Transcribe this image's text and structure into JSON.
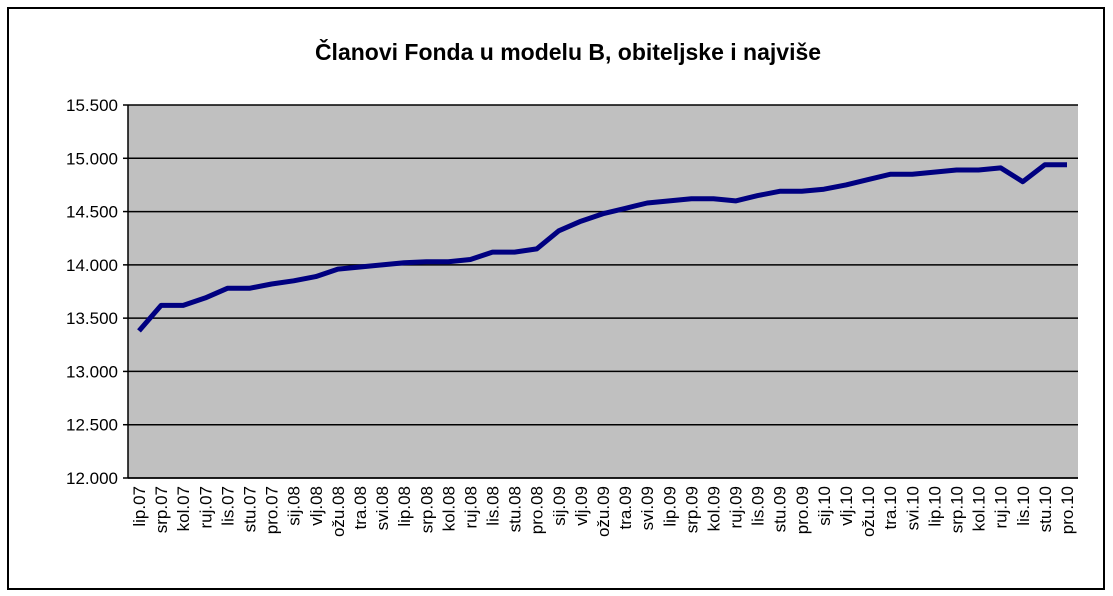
{
  "chart_data": {
    "type": "line",
    "title": "Članovi Fonda u modelu B, obiteljske i najviše",
    "categories": [
      "lip.07",
      "srp.07",
      "kol.07",
      "ruj.07",
      "lis.07",
      "stu.07",
      "pro.07",
      "sij.08",
      "vlj.08",
      "ožu.08",
      "tra.08",
      "svi.08",
      "lip.08",
      "srp.08",
      "kol.08",
      "ruj.08",
      "lis.08",
      "stu.08",
      "pro.08",
      "sij.09",
      "vlj.09",
      "ožu.09",
      "tra.09",
      "svi.09",
      "lip.09",
      "srp.09",
      "kol.09",
      "ruj.09",
      "lis.09",
      "stu.09",
      "pro.09",
      "sij.10",
      "vlj.10",
      "ožu.10",
      "tra.10",
      "svi.10",
      "lip.10",
      "srp.10",
      "kol.10",
      "ruj.10",
      "lis.10",
      "stu.10",
      "pro.10"
    ],
    "values": [
      13380,
      13620,
      13620,
      13690,
      13780,
      13780,
      13820,
      13850,
      13890,
      13960,
      13980,
      14000,
      14020,
      14030,
      14030,
      14050,
      14120,
      14120,
      14150,
      14320,
      14410,
      14480,
      14530,
      14580,
      14600,
      14620,
      14620,
      14600,
      14650,
      14690,
      14690,
      14710,
      14750,
      14800,
      14850,
      14850,
      14870,
      14890,
      14890,
      14910,
      14780,
      14940,
      14940
    ],
    "color": "#000080",
    "ylim": [
      12000,
      15500
    ],
    "yticks": [
      {
        "value": 12000,
        "label": "12.000"
      },
      {
        "value": 12500,
        "label": "12.500"
      },
      {
        "value": 13000,
        "label": "13.000"
      },
      {
        "value": 13500,
        "label": "13.500"
      },
      {
        "value": 14000,
        "label": "14.000"
      },
      {
        "value": 14500,
        "label": "14.500"
      },
      {
        "value": 15000,
        "label": "15.000"
      },
      {
        "value": 15500,
        "label": "15.500"
      }
    ],
    "grid": true
  }
}
